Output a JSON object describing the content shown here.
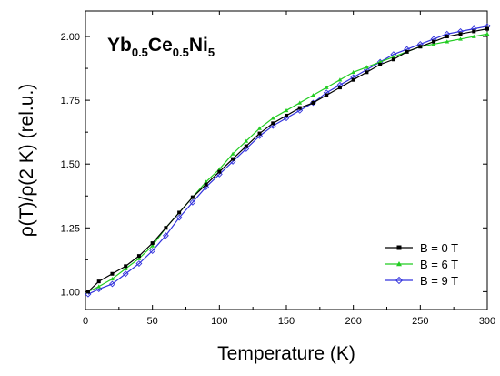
{
  "chart_data": {
    "type": "scatter",
    "title_parts": [
      {
        "text": "Yb",
        "sub": false
      },
      {
        "text": "0.5",
        "sub": true
      },
      {
        "text": "Ce",
        "sub": false
      },
      {
        "text": "0.5",
        "sub": true
      },
      {
        "text": "Ni",
        "sub": false
      },
      {
        "text": "5",
        "sub": true
      }
    ],
    "xlabel": "Temperature (K)",
    "ylabel": "ρ(T)/ρ(2 K) (rel.u.)",
    "xlim": [
      0,
      300
    ],
    "ylim": [
      0.93,
      2.1
    ],
    "xticks": [
      0,
      50,
      100,
      150,
      200,
      250,
      300
    ],
    "xtick_labels": [
      "0",
      "50",
      "100",
      "150",
      "200",
      "250",
      "300"
    ],
    "yticks": [
      1.0,
      1.25,
      1.5,
      1.75,
      2.0
    ],
    "ytick_labels": [
      "1.00",
      "1.25",
      "1.50",
      "1.75",
      "2.00"
    ],
    "grid": false,
    "legend_position": "bottom-right",
    "series": [
      {
        "name": "B = 0 T",
        "color": "#000000",
        "marker": "filled-square",
        "x": [
          2,
          10,
          20,
          30,
          40,
          50,
          60,
          70,
          80,
          90,
          100,
          110,
          120,
          130,
          140,
          150,
          160,
          170,
          180,
          190,
          200,
          210,
          220,
          230,
          240,
          250,
          260,
          270,
          280,
          290,
          300
        ],
        "y": [
          1.0,
          1.04,
          1.07,
          1.1,
          1.14,
          1.19,
          1.25,
          1.31,
          1.37,
          1.42,
          1.47,
          1.52,
          1.57,
          1.62,
          1.66,
          1.69,
          1.72,
          1.74,
          1.77,
          1.8,
          1.83,
          1.86,
          1.89,
          1.91,
          1.94,
          1.96,
          1.98,
          2.0,
          2.01,
          2.02,
          2.03
        ]
      },
      {
        "name": "B = 6 T",
        "color": "#22cc22",
        "marker": "filled-triangle",
        "x": [
          2,
          10,
          20,
          30,
          40,
          50,
          60,
          70,
          80,
          90,
          100,
          110,
          120,
          130,
          140,
          150,
          160,
          170,
          180,
          190,
          200,
          210,
          220,
          230,
          240,
          250,
          260,
          270,
          280,
          290,
          300
        ],
        "y": [
          1.0,
          1.02,
          1.05,
          1.09,
          1.13,
          1.18,
          1.25,
          1.31,
          1.37,
          1.43,
          1.48,
          1.54,
          1.59,
          1.64,
          1.68,
          1.71,
          1.74,
          1.77,
          1.8,
          1.83,
          1.86,
          1.88,
          1.9,
          1.92,
          1.94,
          1.96,
          1.97,
          1.98,
          1.99,
          2.0,
          2.01
        ]
      },
      {
        "name": "B = 9 T",
        "color": "#3333dd",
        "marker": "open-diamond",
        "x": [
          2,
          10,
          20,
          30,
          40,
          50,
          60,
          70,
          80,
          90,
          100,
          110,
          120,
          130,
          140,
          150,
          160,
          170,
          180,
          190,
          200,
          210,
          220,
          230,
          240,
          250,
          260,
          270,
          280,
          290,
          300
        ],
        "y": [
          0.99,
          1.01,
          1.03,
          1.07,
          1.11,
          1.16,
          1.22,
          1.29,
          1.35,
          1.41,
          1.46,
          1.51,
          1.56,
          1.61,
          1.65,
          1.68,
          1.71,
          1.74,
          1.78,
          1.81,
          1.84,
          1.87,
          1.9,
          1.93,
          1.95,
          1.97,
          1.99,
          2.01,
          2.02,
          2.03,
          2.04
        ]
      }
    ]
  }
}
